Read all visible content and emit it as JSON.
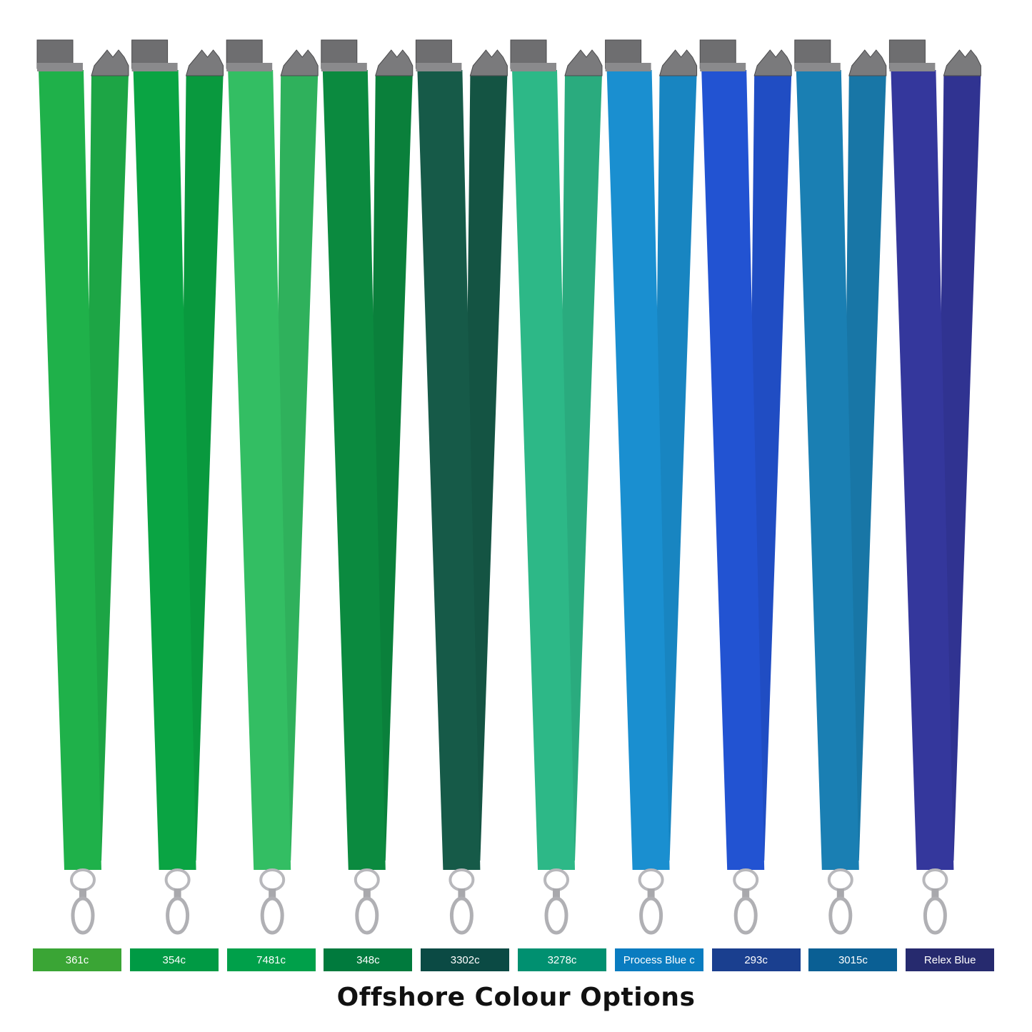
{
  "title": "Offshore Colour Options",
  "options": [
    {
      "label": "361c",
      "swatch": "#3aa535",
      "strap": "#1fb14a"
    },
    {
      "label": "354c",
      "swatch": "#009a44",
      "strap": "#0aa443"
    },
    {
      "label": "7481c",
      "swatch": "#00a04a",
      "strap": "#33be63"
    },
    {
      "label": "348c",
      "swatch": "#007a3d",
      "strap": "#0b8a3f"
    },
    {
      "label": "3302c",
      "swatch": "#0b4a44",
      "strap": "#165a48"
    },
    {
      "label": "3278c",
      "swatch": "#009070",
      "strap": "#2db887"
    },
    {
      "label": "Process Blue c",
      "swatch": "#0a7cc0",
      "strap": "#1a8fd0"
    },
    {
      "label": "293c",
      "swatch": "#1a3f8f",
      "strap": "#2253d2"
    },
    {
      "label": "3015c",
      "swatch": "#0a5f94",
      "strap": "#1a7fb3"
    },
    {
      "label": "Relex Blue",
      "swatch": "#262a6e",
      "strap": "#34379c"
    }
  ]
}
